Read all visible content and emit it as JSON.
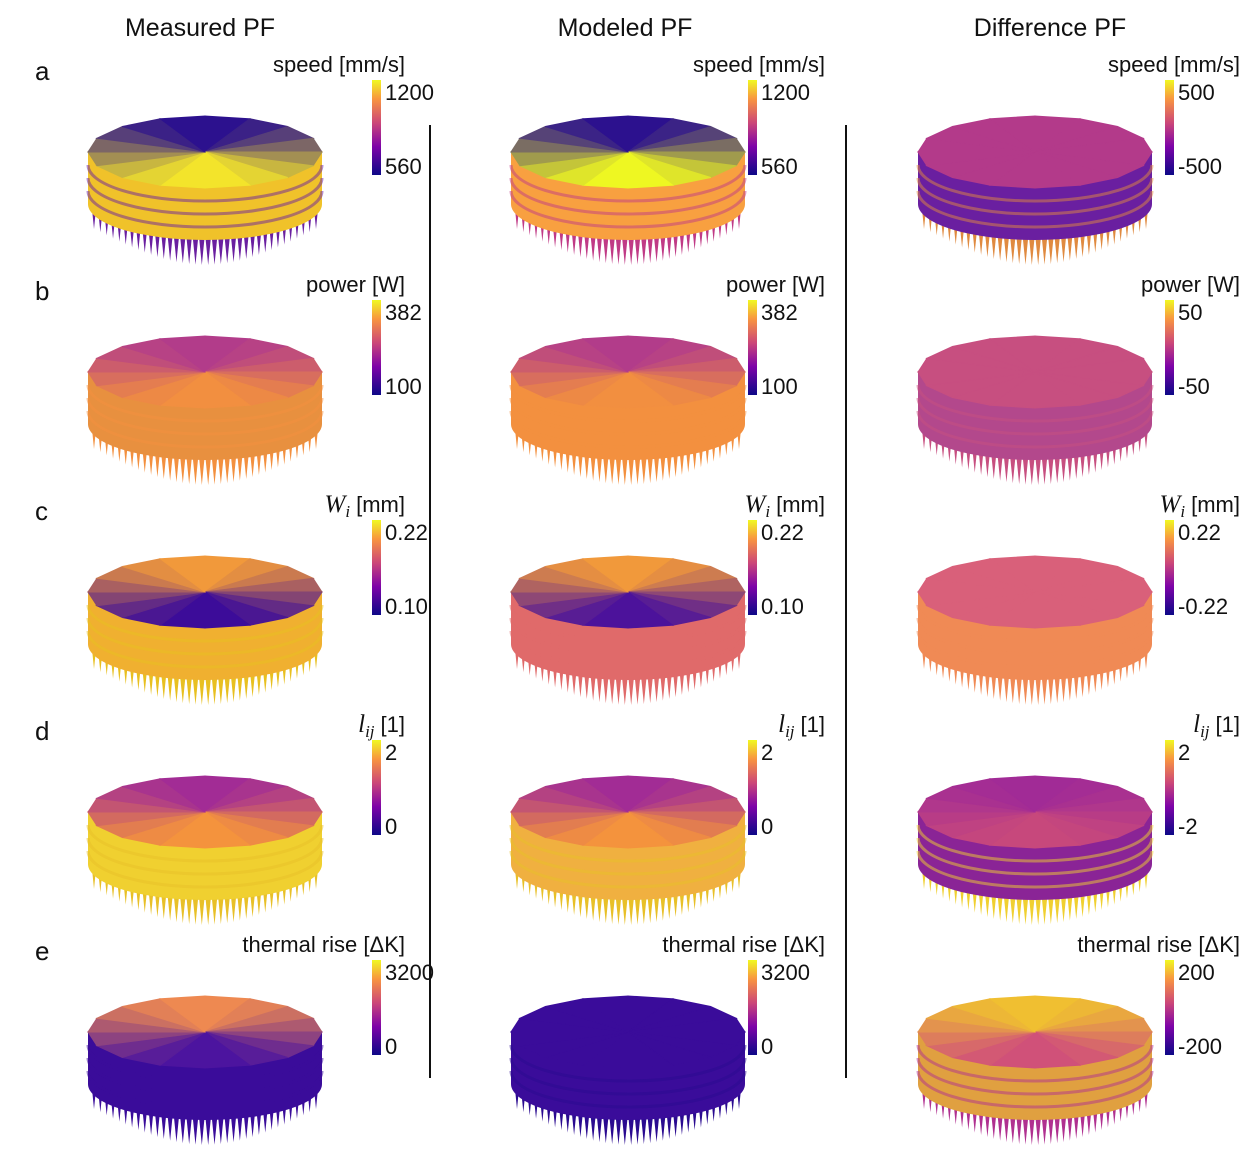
{
  "columns": [
    "Measured PF",
    "Modeled PF",
    "Difference PF"
  ],
  "rows": [
    {
      "letter": "a",
      "panels": [
        {
          "label": {
            "text": "speed [mm/s]"
          },
          "max": "1200",
          "min": "560"
        },
        {
          "label": {
            "text": "speed [mm/s]"
          },
          "max": "1200",
          "min": "560"
        },
        {
          "label": {
            "text": "speed [mm/s]"
          },
          "max": "500",
          "min": "-500"
        }
      ]
    },
    {
      "letter": "b",
      "panels": [
        {
          "label": {
            "text": "power [W]"
          },
          "max": "382",
          "min": "100"
        },
        {
          "label": {
            "text": "power [W]"
          },
          "max": "382",
          "min": "100"
        },
        {
          "label": {
            "text": "power [W]"
          },
          "max": "50",
          "min": "-50"
        }
      ]
    },
    {
      "letter": "c",
      "panels": [
        {
          "label": {
            "symbol": "W",
            "subscript": "i",
            "unit": "[mm]"
          },
          "max": "0.22",
          "min": "0.10"
        },
        {
          "label": {
            "symbol": "W",
            "subscript": "i",
            "unit": "[mm]"
          },
          "max": "0.22",
          "min": "0.10"
        },
        {
          "label": {
            "symbol": "W",
            "subscript": "i",
            "unit": "[mm]"
          },
          "max": "0.22",
          "min": "-0.22"
        }
      ]
    },
    {
      "letter": "d",
      "panels": [
        {
          "label": {
            "symbol": "l",
            "subscript": "ij",
            "unit": "[1]"
          },
          "max": "2",
          "min": "0"
        },
        {
          "label": {
            "symbol": "l",
            "subscript": "ij",
            "unit": "[1]"
          },
          "max": "2",
          "min": "0"
        },
        {
          "label": {
            "symbol": "l",
            "subscript": "ij",
            "unit": "[1]"
          },
          "max": "2",
          "min": "-2"
        }
      ]
    },
    {
      "letter": "e",
      "panels": [
        {
          "label": {
            "text": "thermal rise [ΔK]"
          },
          "max": "3200",
          "min": "0"
        },
        {
          "label": {
            "text": "thermal rise [ΔK]"
          },
          "max": "3200",
          "min": "0"
        },
        {
          "label": {
            "text": "thermal rise [ΔK]"
          },
          "max": "200",
          "min": "-200"
        }
      ]
    }
  ]
}
